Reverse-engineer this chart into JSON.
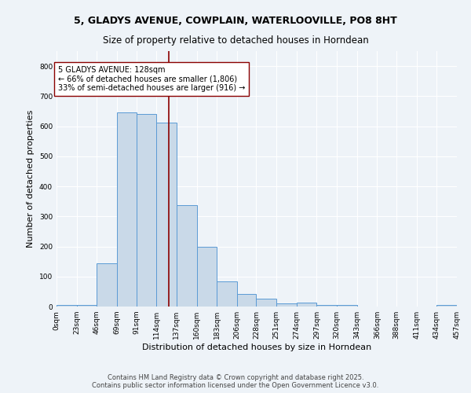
{
  "title_line1": "5, GLADYS AVENUE, COWPLAIN, WATERLOOVILLE, PO8 8HT",
  "title_line2": "Size of property relative to detached houses in Horndean",
  "xlabel": "Distribution of detached houses by size in Horndean",
  "ylabel": "Number of detached properties",
  "bar_edges": [
    0,
    23,
    46,
    69,
    91,
    114,
    137,
    160,
    183,
    206,
    228,
    251,
    274,
    297,
    320,
    343,
    366,
    388,
    411,
    434,
    457
  ],
  "bar_heights": [
    5,
    5,
    145,
    645,
    640,
    612,
    337,
    200,
    85,
    42,
    27,
    10,
    12,
    6,
    5,
    0,
    0,
    0,
    0,
    5
  ],
  "bar_color": "#c9d9e8",
  "bar_edge_color": "#5b9bd5",
  "vline_x": 128,
  "vline_color": "#8b0000",
  "ylim": [
    0,
    850
  ],
  "yticks": [
    0,
    100,
    200,
    300,
    400,
    500,
    600,
    700,
    800
  ],
  "xtick_labels": [
    "0sqm",
    "23sqm",
    "46sqm",
    "69sqm",
    "91sqm",
    "114sqm",
    "137sqm",
    "160sqm",
    "183sqm",
    "206sqm",
    "228sqm",
    "251sqm",
    "274sqm",
    "297sqm",
    "320sqm",
    "343sqm",
    "366sqm",
    "388sqm",
    "411sqm",
    "434sqm",
    "457sqm"
  ],
  "annotation_text": "5 GLADYS AVENUE: 128sqm\n← 66% of detached houses are smaller (1,806)\n33% of semi-detached houses are larger (916) →",
  "annotation_box_color": "#ffffff",
  "annotation_box_edge": "#8b0000",
  "footer_line1": "Contains HM Land Registry data © Crown copyright and database right 2025.",
  "footer_line2": "Contains public sector information licensed under the Open Government Licence v3.0.",
  "bg_color": "#eef3f8",
  "plot_bg_color": "#eef3f8",
  "grid_color": "#ffffff",
  "title_fontsize": 9,
  "subtitle_fontsize": 8.5,
  "axis_label_fontsize": 8,
  "tick_fontsize": 6.5,
  "annotation_fontsize": 7,
  "footer_fontsize": 6
}
